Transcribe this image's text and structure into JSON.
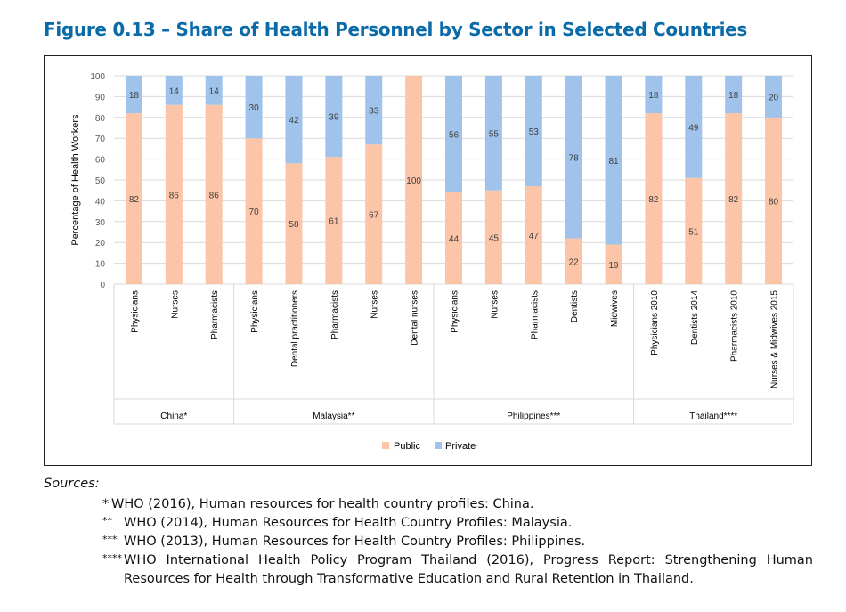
{
  "title": "Figure 0.13 – Share of Health Personnel by Sector in Selected Countries",
  "chart_data": {
    "type": "bar",
    "stacked": true,
    "title": "Figure 0.13 – Share of Health Personnel by Sector in Selected Countries",
    "ylabel": "Percentage of Health Workers",
    "xlabel": "",
    "ylim": [
      0,
      100
    ],
    "yticks": [
      0,
      10,
      20,
      30,
      40,
      50,
      60,
      70,
      80,
      90,
      100
    ],
    "grid": true,
    "legend_position": "bottom",
    "groups": [
      {
        "name": "China*",
        "categories": [
          "Physicians",
          "Nurses",
          "Pharmacists"
        ]
      },
      {
        "name": "Malaysia**",
        "categories": [
          "Physicians",
          "Dental practitioners",
          "Pharmacists",
          "Nurses",
          "Dental nurses"
        ]
      },
      {
        "name": "Philippines***",
        "categories": [
          "Physicians",
          "Nurses",
          "Pharmacists",
          "Dentists",
          "Midwives"
        ]
      },
      {
        "name": "Thailand****",
        "categories": [
          "Physicians 2010",
          "Dentists 2014",
          "Pharmacists 2010",
          "Nurses & Midwives 2015"
        ]
      }
    ],
    "series": [
      {
        "name": "Public",
        "color": "#fcc5a7",
        "values": [
          82,
          86,
          86,
          70,
          58,
          61,
          67,
          100,
          44,
          45,
          47,
          22,
          19,
          82,
          51,
          82,
          80
        ]
      },
      {
        "name": "Private",
        "color": "#9fc3eb",
        "values": [
          18,
          14,
          14,
          30,
          42,
          39,
          33,
          null,
          56,
          55,
          53,
          78,
          81,
          18,
          49,
          18,
          20
        ]
      }
    ]
  },
  "sources": {
    "heading": "Sources",
    "items": [
      {
        "marker": "*",
        "text": "WHO (2016), Human resources for health country profiles: China."
      },
      {
        "marker": "**",
        "text": "WHO (2014), Human Resources for Health Country Profiles: Malaysia."
      },
      {
        "marker": "***",
        "text": "WHO (2013), Human Resources for Health Country Profiles: Philippines."
      },
      {
        "marker": "****",
        "text": "WHO International Health Policy Program Thailand (2016), Progress Report: Strengthening Human Resources for Health through Transformative Education and Rural Retention in Thailand."
      }
    ]
  }
}
